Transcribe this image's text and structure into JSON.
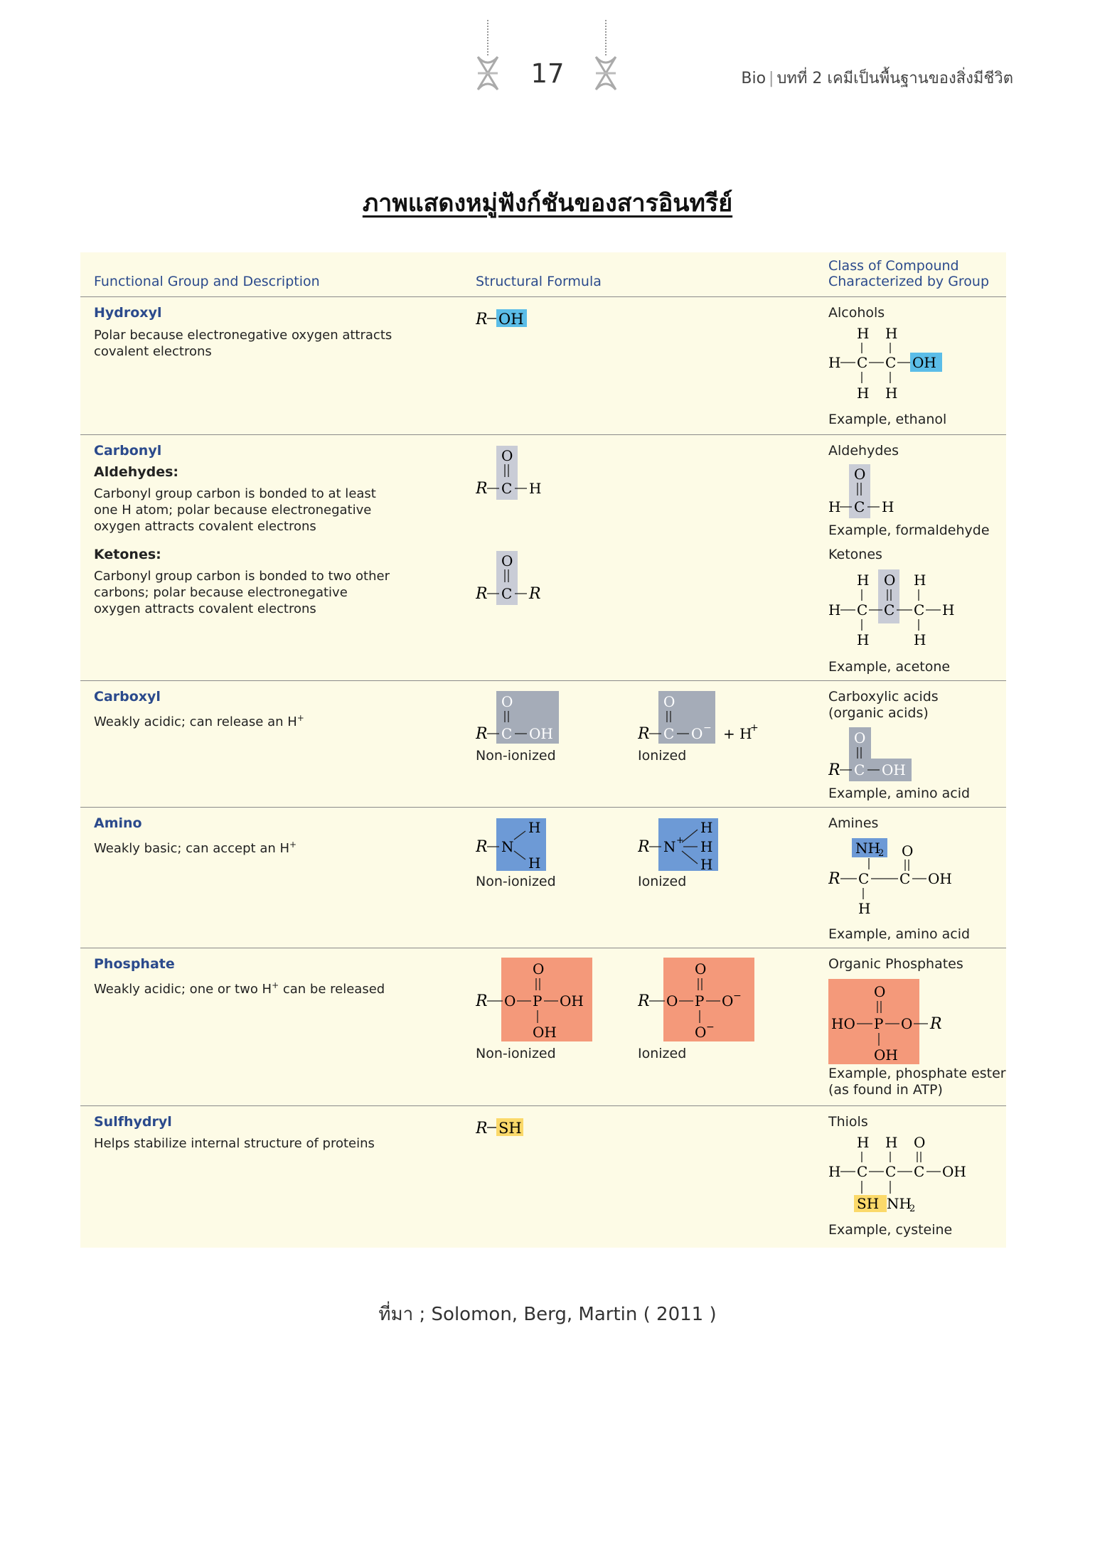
{
  "header": {
    "page_number": "17",
    "subject": "Bio",
    "chapter": "บทที่ 2 เคมีเป็นพื้นฐานของสิ่งมีชีวิต"
  },
  "title": "ภาพแสดงหมู่ฟังก์ชันของสารอินทรีย์",
  "columns": {
    "group": "Functional Group and Description",
    "formula": "Structural Formula",
    "class_line1": "Class of Compound",
    "class_line2": "Characterized by Group"
  },
  "rows": {
    "hydroxyl": {
      "name": "Hydroxyl",
      "desc": "Polar because electronegative oxygen attracts covalent electrons",
      "class": "Alcohols",
      "example": "Example, ethanol"
    },
    "carbonyl": {
      "name": "Carbonyl",
      "ald_title": "Aldehydes:",
      "ald_desc": "Carbonyl group carbon is bonded to at least one H atom; polar because electronegative oxygen attracts covalent electrons",
      "ket_title": "Ketones:",
      "ket_desc": "Carbonyl group carbon is bonded to two other carbons; polar because electronegative oxygen attracts covalent electrons",
      "ald_class": "Aldehydes",
      "ald_example": "Example, formaldehyde",
      "ket_class": "Ketones",
      "ket_example": "Example, acetone"
    },
    "carboxyl": {
      "name": "Carboxyl",
      "desc": "Weakly acidic; can release an H",
      "nonionized": "Non-ionized",
      "ionized": "Ionized",
      "class_line1": "Carboxylic acids",
      "class_line2": "(organic acids)",
      "example": "Example, amino acid"
    },
    "amino": {
      "name": "Amino",
      "desc": "Weakly basic; can accept an H",
      "nonionized": "Non-ionized",
      "ionized": "Ionized",
      "class": "Amines",
      "example": "Example, amino acid"
    },
    "phosphate": {
      "name": "Phosphate",
      "desc_a": "Weakly acidic; one or two H",
      "desc_b": " can be released",
      "nonionized": "Non-ionized",
      "ionized": "Ionized",
      "class": "Organic Phosphates",
      "example_line1": "Example, phosphate ester",
      "example_line2": "(as found in ATP)"
    },
    "sulfhydryl": {
      "name": "Sulfhydryl",
      "desc": "Helps stabilize internal structure of proteins",
      "class": "Thiols",
      "example": "Example, cysteine"
    }
  },
  "source": "ที่มา ; Solomon, Berg, Martin ( 2011 )",
  "colors": {
    "hydroxyl": "#5bbde8",
    "carbonyl": "#c9ccd6",
    "carboxyl": "#a5acb8",
    "amino": "#6d9ad6",
    "phosphate": "#f4997a",
    "sulfhydryl": "#fbd96a",
    "heading": "#2b4a8c",
    "panel": "#fdfbe6"
  }
}
